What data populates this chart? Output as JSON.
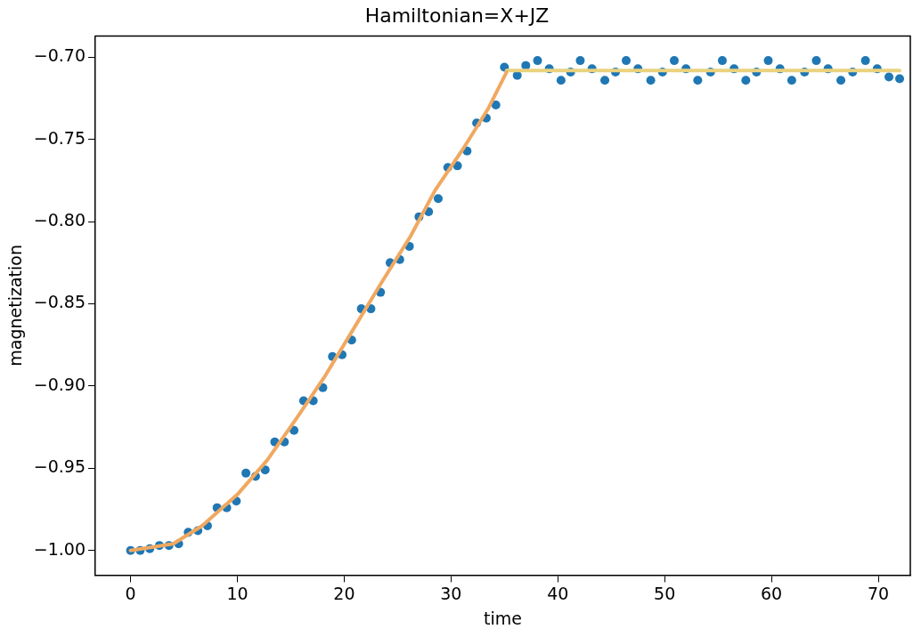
{
  "chart_data": {
    "type": "scatter",
    "title": "Hamiltonian=X+JZ",
    "xlabel": "time",
    "ylabel": "magnetization",
    "xlim": [
      -3.3,
      73
    ],
    "xticks": [
      0,
      10,
      20,
      30,
      40,
      50,
      60,
      70
    ],
    "ylim": [
      -1.015,
      -0.687
    ],
    "yticks": [
      {
        "value": -1,
        "label": "−1.00"
      },
      {
        "value": -0.95,
        "label": "−0.95"
      },
      {
        "value": -0.9,
        "label": "−0.90"
      },
      {
        "value": -0.85,
        "label": "−0.85"
      },
      {
        "value": -0.8,
        "label": "−0.80"
      },
      {
        "value": -0.75,
        "label": "−0.75"
      },
      {
        "value": -0.7,
        "label": "−0.70"
      }
    ],
    "grid": false,
    "legend": false,
    "series": [
      {
        "type": "scatter",
        "marker": "circle",
        "color": "#1f77b4",
        "x": [
          0,
          0.9,
          1.8,
          2.7,
          3.6,
          4.5,
          5.4,
          6.3,
          7.2,
          8.1,
          9,
          9.9,
          10.8,
          11.7,
          12.6,
          13.5,
          14.4,
          15.3,
          16.2,
          17.1,
          18,
          18.9,
          19.8,
          20.7,
          21.6,
          22.5,
          23.4,
          24.3,
          25.2,
          26.1,
          27,
          27.9,
          28.8,
          29.7,
          30.6,
          31.5,
          32.4,
          33.3,
          34.2,
          35,
          36.2,
          37,
          38.1,
          39.2,
          40.3,
          41.2,
          42.1,
          43.2,
          44.4,
          45.4,
          46.4,
          47.5,
          48.7,
          49.8,
          50.9,
          52,
          53.1,
          54.3,
          55.4,
          56.5,
          57.6,
          58.6,
          59.7,
          60.8,
          61.9,
          63.1,
          64.2,
          65.3,
          66.5,
          67.6,
          68.8,
          69.9,
          71,
          72
        ],
        "values": [
          -1,
          -1,
          -0.999,
          -0.997,
          -0.997,
          -0.996,
          -0.989,
          -0.988,
          -0.985,
          -0.974,
          -0.974,
          -0.97,
          -0.953,
          -0.955,
          -0.951,
          -0.934,
          -0.934,
          -0.927,
          -0.909,
          -0.909,
          -0.901,
          -0.882,
          -0.881,
          -0.872,
          -0.853,
          -0.853,
          -0.843,
          -0.825,
          -0.823,
          -0.815,
          -0.797,
          -0.794,
          -0.786,
          -0.767,
          -0.766,
          -0.757,
          -0.74,
          -0.737,
          -0.729,
          -0.706,
          -0.711,
          -0.705,
          -0.702,
          -0.707,
          -0.714,
          -0.709,
          -0.702,
          -0.707,
          -0.714,
          -0.709,
          -0.702,
          -0.707,
          -0.714,
          -0.709,
          -0.702,
          -0.707,
          -0.714,
          -0.709,
          -0.702,
          -0.707,
          -0.714,
          -0.709,
          -0.702,
          -0.707,
          -0.714,
          -0.709,
          -0.702,
          -0.707,
          -0.714,
          -0.709,
          -0.702,
          -0.707,
          -0.712,
          -0.713
        ]
      },
      {
        "type": "line",
        "marker": "none",
        "color": "#f0a860",
        "x": [
          0,
          4,
          6.7,
          10,
          12.8,
          15.5,
          18.1,
          20.8,
          23.5,
          26.2,
          28.5,
          31.2,
          33.5,
          35.2
        ],
        "values": [
          -1,
          -0.996,
          -0.985,
          -0.966,
          -0.945,
          -0.92,
          -0.895,
          -0.866,
          -0.837,
          -0.809,
          -0.781,
          -0.755,
          -0.731,
          -0.709
        ]
      },
      {
        "type": "line",
        "marker": "none",
        "color": "#ead27e",
        "x": [
          35.2,
          72
        ],
        "values": [
          -0.708,
          -0.708
        ]
      }
    ]
  }
}
